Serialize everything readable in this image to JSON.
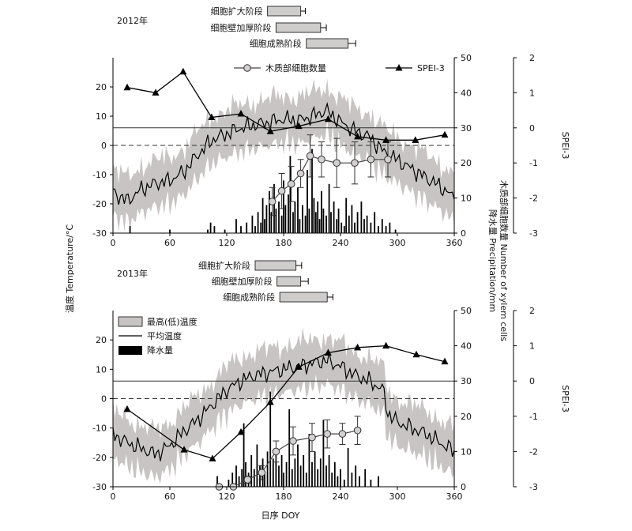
{
  "figure": {
    "shared_ylabel_left": "温度 Temperature/°C",
    "shared_ylabel_right_1": "降水量 Precipitation/mm",
    "shared_ylabel_right_2": "木质部细胞数量 Number of xylem cells",
    "xlabel": "日序 DOY",
    "spei_label": "SPEI-3"
  },
  "legend": {
    "cells": "木质部细胞数量",
    "spei": "SPEI-3",
    "temp_range": "最高(低)温度",
    "temp_mean": "平均温度",
    "precip": "降水量"
  },
  "chart_data": [
    {
      "type": "line",
      "title": "2012年",
      "x_axis": {
        "ticks": [
          0,
          60,
          120,
          180,
          240,
          300,
          360
        ],
        "range": [
          0,
          360
        ]
      },
      "y_left": {
        "label": "温度 Temperature/°C",
        "ticks": [
          -30,
          -20,
          -10,
          0,
          10,
          20
        ],
        "range": [
          -30,
          30
        ]
      },
      "y_right1": {
        "label": "降水量 Precipitation/mm / 木质部细胞数量",
        "ticks": [
          0,
          10,
          20,
          30,
          40,
          50
        ],
        "range": [
          0,
          50
        ]
      },
      "y_right2": {
        "label": "SPEI-3",
        "ticks": [
          -3,
          -2,
          -1,
          0,
          1,
          2
        ],
        "range": [
          -3,
          2
        ]
      },
      "phases": [
        {
          "name": "细胞扩大阶段",
          "start": 163,
          "end": 198,
          "err": 5
        },
        {
          "name": "细胞壁加厚阶段",
          "start": 172,
          "end": 219,
          "err": 6
        },
        {
          "name": "细胞成熟阶段",
          "start": 204,
          "end": 248,
          "err": 8
        }
      ],
      "mean_temp_anchors": [
        [
          0,
          -16
        ],
        [
          15,
          -19
        ],
        [
          30,
          -15
        ],
        [
          45,
          -13
        ],
        [
          60,
          -12
        ],
        [
          75,
          -9
        ],
        [
          90,
          -3
        ],
        [
          105,
          2
        ],
        [
          120,
          4
        ],
        [
          135,
          6
        ],
        [
          150,
          7
        ],
        [
          165,
          8
        ],
        [
          180,
          9
        ],
        [
          195,
          8.5
        ],
        [
          210,
          10
        ],
        [
          225,
          12
        ],
        [
          240,
          8
        ],
        [
          255,
          5
        ],
        [
          270,
          3
        ],
        [
          285,
          -2
        ],
        [
          300,
          -5
        ],
        [
          315,
          -8
        ],
        [
          330,
          -11
        ],
        [
          345,
          -14
        ],
        [
          360,
          -18
        ]
      ],
      "temp_band_halfwidth": 8,
      "precip_mm": [
        [
          18,
          2
        ],
        [
          60,
          1
        ],
        [
          100,
          1
        ],
        [
          103,
          3
        ],
        [
          107,
          2
        ],
        [
          118,
          1
        ],
        [
          130,
          4
        ],
        [
          135,
          2
        ],
        [
          141,
          3
        ],
        [
          147,
          5
        ],
        [
          150,
          2
        ],
        [
          153,
          6
        ],
        [
          156,
          3
        ],
        [
          158,
          10
        ],
        [
          160,
          4
        ],
        [
          162,
          8
        ],
        [
          165,
          12
        ],
        [
          167,
          6
        ],
        [
          170,
          14
        ],
        [
          172,
          7
        ],
        [
          175,
          9
        ],
        [
          178,
          5
        ],
        [
          180,
          15
        ],
        [
          182,
          8
        ],
        [
          185,
          11
        ],
        [
          187,
          22
        ],
        [
          190,
          6
        ],
        [
          192,
          9
        ],
        [
          195,
          13
        ],
        [
          197,
          4
        ],
        [
          200,
          8
        ],
        [
          203,
          5
        ],
        [
          205,
          18
        ],
        [
          207,
          7
        ],
        [
          210,
          24
        ],
        [
          212,
          10
        ],
        [
          214,
          6
        ],
        [
          216,
          9
        ],
        [
          218,
          4
        ],
        [
          220,
          12
        ],
        [
          222,
          7
        ],
        [
          225,
          5
        ],
        [
          228,
          14
        ],
        [
          230,
          6
        ],
        [
          233,
          9
        ],
        [
          236,
          4
        ],
        [
          238,
          7
        ],
        [
          241,
          3
        ],
        [
          244,
          2
        ],
        [
          246,
          10
        ],
        [
          249,
          5
        ],
        [
          252,
          8
        ],
        [
          255,
          3
        ],
        [
          258,
          6
        ],
        [
          262,
          9
        ],
        [
          265,
          4
        ],
        [
          268,
          5
        ],
        [
          272,
          3
        ],
        [
          276,
          6
        ],
        [
          280,
          2
        ],
        [
          284,
          4
        ],
        [
          288,
          2
        ],
        [
          292,
          3
        ],
        [
          298,
          1
        ]
      ],
      "cells": [
        [
          168,
          9
        ],
        [
          178,
          12
        ],
        [
          188,
          14
        ],
        [
          198,
          17
        ],
        [
          208,
          22
        ],
        [
          220,
          21
        ],
        [
          236,
          20
        ],
        [
          255,
          20
        ],
        [
          272,
          21
        ],
        [
          290,
          21
        ]
      ],
      "cells_err": [
        4,
        5,
        5,
        4,
        6,
        5,
        7,
        6,
        5,
        5
      ],
      "spei": [
        [
          15,
          1.15
        ],
        [
          45,
          1.0
        ],
        [
          74,
          1.6
        ],
        [
          104,
          0.3
        ],
        [
          135,
          0.4
        ],
        [
          166,
          -0.1
        ],
        [
          196,
          0.05
        ],
        [
          227,
          0.25
        ],
        [
          258,
          -0.25
        ],
        [
          288,
          -0.35
        ],
        [
          319,
          -0.35
        ],
        [
          350,
          -0.2
        ]
      ]
    },
    {
      "type": "line",
      "title": "2013年",
      "x_axis": {
        "ticks": [
          0,
          60,
          120,
          180,
          240,
          300,
          360
        ],
        "range": [
          0,
          360
        ]
      },
      "y_left": {
        "label": "温度 Temperature/°C",
        "ticks": [
          -30,
          -20,
          -10,
          0,
          10,
          20
        ],
        "range": [
          -30,
          30
        ]
      },
      "y_right1": {
        "label": "降水量 Precipitation/mm / 木质部细胞数量",
        "ticks": [
          0,
          10,
          20,
          30,
          40,
          50
        ],
        "range": [
          0,
          50
        ]
      },
      "y_right2": {
        "label": "SPEI-3",
        "ticks": [
          -3,
          -2,
          -1,
          0,
          1,
          2
        ],
        "range": [
          -3,
          2
        ]
      },
      "phases": [
        {
          "name": "细胞扩大阶段",
          "start": 150,
          "end": 193,
          "err": 6
        },
        {
          "name": "细胞壁加厚阶段",
          "start": 173,
          "end": 198,
          "err": 8
        },
        {
          "name": "细胞成熟阶段",
          "start": 176,
          "end": 226,
          "err": 6
        }
      ],
      "mean_temp_anchors": [
        [
          0,
          -12
        ],
        [
          15,
          -15
        ],
        [
          30,
          -17
        ],
        [
          45,
          -19
        ],
        [
          60,
          -16
        ],
        [
          75,
          -11
        ],
        [
          90,
          -7
        ],
        [
          105,
          -2
        ],
        [
          120,
          3
        ],
        [
          135,
          6
        ],
        [
          150,
          8
        ],
        [
          165,
          9
        ],
        [
          180,
          10
        ],
        [
          195,
          11
        ],
        [
          210,
          12
        ],
        [
          225,
          13
        ],
        [
          240,
          11
        ],
        [
          255,
          8
        ],
        [
          270,
          6
        ],
        [
          285,
          3
        ],
        [
          290,
          -5
        ],
        [
          300,
          -8
        ],
        [
          315,
          -10
        ],
        [
          330,
          -12
        ],
        [
          345,
          -15
        ],
        [
          360,
          -18
        ]
      ],
      "temp_band_halfwidth": 8,
      "precip_mm": [
        [
          110,
          3
        ],
        [
          122,
          2
        ],
        [
          126,
          4
        ],
        [
          130,
          6
        ],
        [
          133,
          3
        ],
        [
          136,
          5
        ],
        [
          138,
          18
        ],
        [
          140,
          7
        ],
        [
          143,
          4
        ],
        [
          146,
          9
        ],
        [
          149,
          5
        ],
        [
          152,
          12
        ],
        [
          155,
          6
        ],
        [
          158,
          8
        ],
        [
          160,
          4
        ],
        [
          163,
          10
        ],
        [
          166,
          27
        ],
        [
          169,
          8
        ],
        [
          172,
          11
        ],
        [
          175,
          6
        ],
        [
          178,
          9
        ],
        [
          180,
          4
        ],
        [
          183,
          7
        ],
        [
          186,
          22
        ],
        [
          189,
          5
        ],
        [
          192,
          8
        ],
        [
          195,
          12
        ],
        [
          198,
          6
        ],
        [
          201,
          9
        ],
        [
          204,
          4
        ],
        [
          207,
          15
        ],
        [
          210,
          7
        ],
        [
          213,
          10
        ],
        [
          216,
          5
        ],
        [
          219,
          8
        ],
        [
          222,
          19
        ],
        [
          225,
          6
        ],
        [
          228,
          9
        ],
        [
          231,
          4
        ],
        [
          234,
          7
        ],
        [
          237,
          3
        ],
        [
          240,
          5
        ],
        [
          244,
          2
        ],
        [
          248,
          11
        ],
        [
          252,
          4
        ],
        [
          256,
          6
        ],
        [
          260,
          3
        ],
        [
          266,
          5
        ],
        [
          272,
          2
        ],
        [
          280,
          3
        ]
      ],
      "cells": [
        [
          112,
          0
        ],
        [
          127,
          0
        ],
        [
          142,
          2
        ],
        [
          157,
          4
        ],
        [
          172,
          10
        ],
        [
          190,
          13
        ],
        [
          210,
          14
        ],
        [
          226,
          15
        ],
        [
          242,
          15
        ],
        [
          258,
          16
        ]
      ],
      "cells_err": [
        0,
        0,
        1,
        2,
        3,
        4,
        4,
        4,
        3,
        4
      ],
      "spei": [
        [
          15,
          -0.8
        ],
        [
          75,
          -1.95
        ],
        [
          105,
          -2.2
        ],
        [
          135,
          -1.45
        ],
        [
          166,
          -0.6
        ],
        [
          196,
          0.4
        ],
        [
          227,
          0.8
        ],
        [
          258,
          0.95
        ],
        [
          288,
          1.0
        ],
        [
          320,
          0.75
        ],
        [
          350,
          0.55
        ]
      ]
    }
  ]
}
